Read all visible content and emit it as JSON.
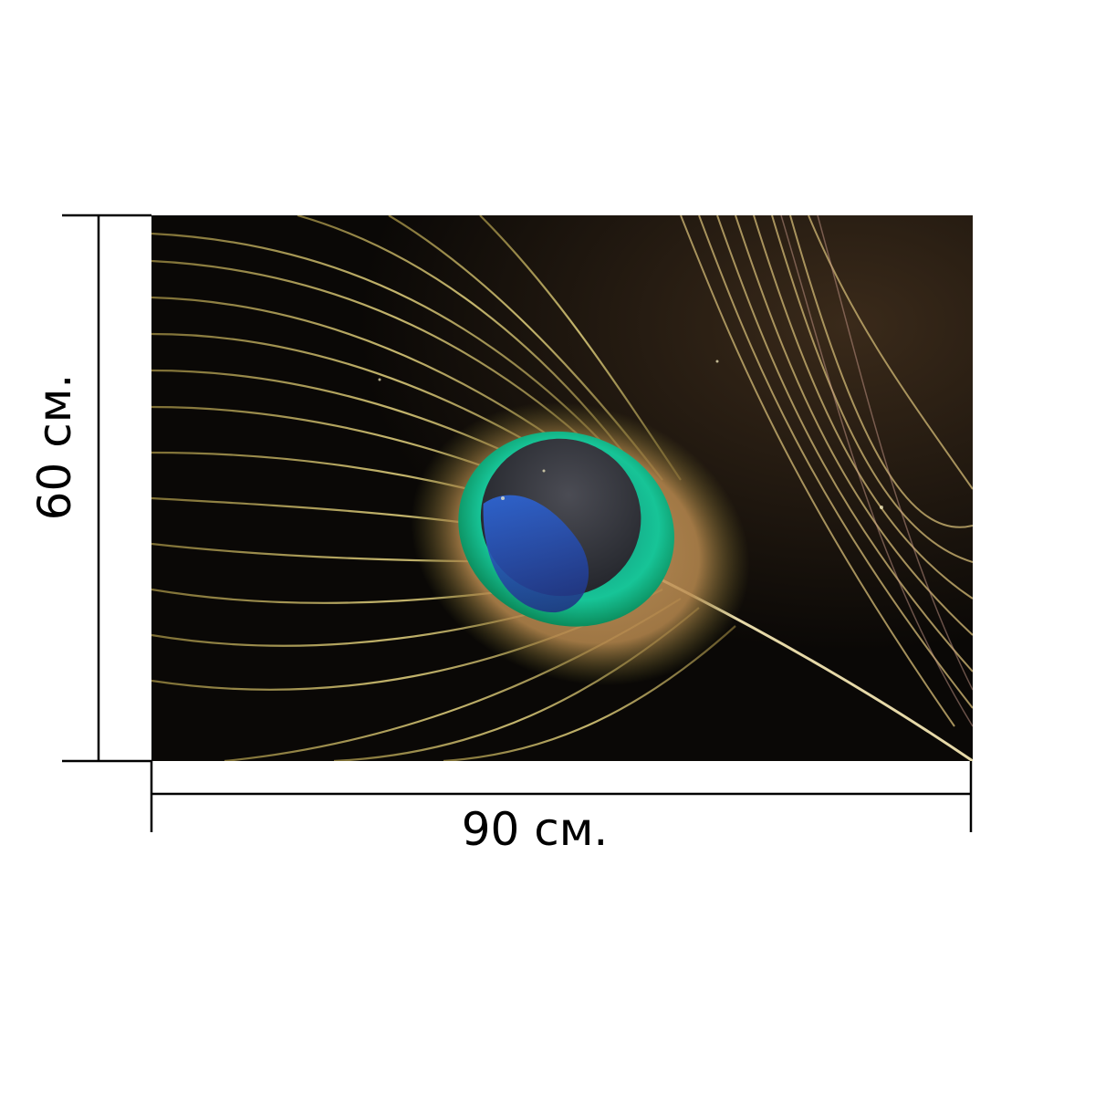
{
  "dimensions": {
    "width_label": "90 см.",
    "height_label": "60 см."
  },
  "image": {
    "subject_icon": "peacock-feather-photo"
  },
  "colors": {
    "line": "#000000",
    "background": "#ffffff",
    "eye_green": "#15c39a",
    "eye_blue": "#2a56c8",
    "feather_gold": "#c9b35e"
  }
}
